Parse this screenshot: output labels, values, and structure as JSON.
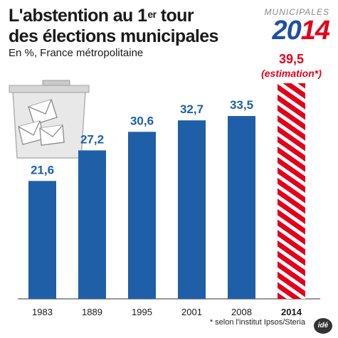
{
  "header": {
    "title_line1_pre": "L'abstention au 1",
    "title_sup": "er",
    "title_line1_post": " tour",
    "title_line2": "des élections municipales",
    "subtitle": "En %, France métropolitaine"
  },
  "logo": {
    "top_text": "MUNICIPALES",
    "year_part1": "20",
    "year_part2": "14"
  },
  "footnote": "* selon l'institut Ipsos/Steria",
  "agency": "idé",
  "colors": {
    "bar": "#1f5fa8",
    "highlight": "#e2001a",
    "value_text": "#1f5fa8"
  },
  "chart_data": {
    "type": "bar",
    "categories": [
      "1983",
      "1889",
      "1995",
      "2001",
      "2008",
      "2014"
    ],
    "values": [
      21.6,
      27.2,
      30.6,
      32.7,
      33.5,
      39.5
    ],
    "value_labels": [
      "21,6",
      "27,2",
      "30,6",
      "32,7",
      "33,5",
      "39,5"
    ],
    "highlight_index": 5,
    "highlight_note": "(estimation*)",
    "ylim": [
      0,
      39.5
    ],
    "grid": false,
    "legend": "none"
  }
}
